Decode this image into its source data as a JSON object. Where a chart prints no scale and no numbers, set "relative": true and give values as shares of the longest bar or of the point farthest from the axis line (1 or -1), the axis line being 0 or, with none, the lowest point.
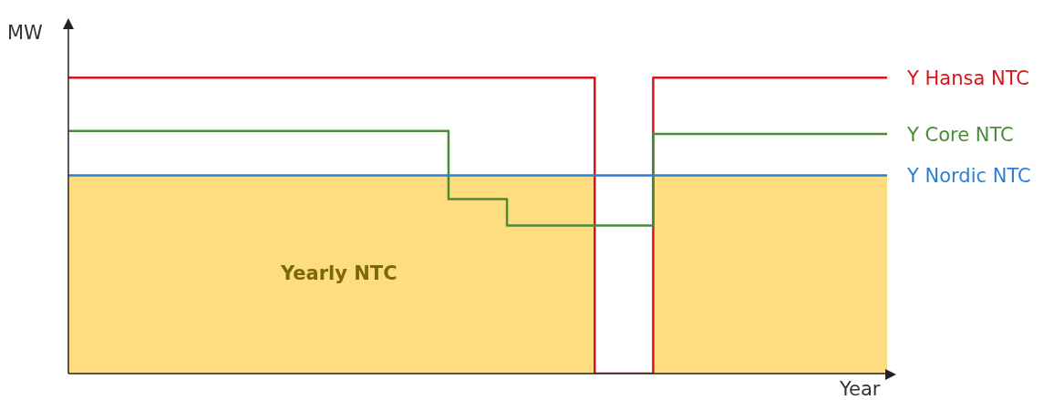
{
  "chart_data": {
    "type": "step",
    "relative": true,
    "xlabel": "Year",
    "ylabel": "MW",
    "annotations": [
      "Yearly NTC"
    ],
    "categories": [
      null,
      null,
      null,
      null,
      null,
      null,
      null,
      null,
      null,
      null,
      null,
      null,
      null,
      null,
      null,
      null,
      null,
      null,
      null,
      null,
      null,
      null,
      null,
      null,
      null,
      null,
      null,
      null,
      null
    ],
    "series": [
      {
        "type": "area",
        "color": "#fedd80",
        "values": [
          0.67,
          0.67,
          0.67,
          0.67,
          0.67,
          0.67,
          0.67,
          0.67,
          0.67,
          0.67,
          0.67,
          0.67,
          0.67,
          0.67,
          0.67,
          0.67,
          0.67,
          0.67,
          0,
          0,
          0.67,
          0.67,
          0.67,
          0.67,
          0.67,
          0.67,
          0.67,
          0.67,
          0.67
        ]
      },
      {
        "type": "step",
        "name": "Y Hansa NTC",
        "color": "#d7141c",
        "values": [
          1,
          1,
          1,
          1,
          1,
          1,
          1,
          1,
          1,
          1,
          1,
          1,
          1,
          1,
          1,
          1,
          1,
          1,
          0,
          0,
          1,
          1,
          1,
          1,
          1,
          1,
          1,
          1,
          1
        ]
      },
      {
        "type": "step",
        "name": "Y Core NTC",
        "color": "#4a8a3a",
        "values": [
          0.82,
          0.82,
          0.82,
          0.82,
          0.82,
          0.82,
          0.82,
          0.82,
          0.82,
          0.82,
          0.82,
          0.82,
          0.82,
          0.59,
          0.59,
          0.5,
          0.5,
          0.5,
          0.5,
          0.5,
          0.81,
          0.81,
          0.81,
          0.81,
          0.81,
          0.81,
          0.81,
          0.81,
          0.81
        ]
      },
      {
        "type": "step",
        "name": "Y Nordic NTC",
        "color": "#2a7fd4",
        "values": [
          0.67,
          0.67,
          0.67,
          0.67,
          0.67,
          0.67,
          0.67,
          0.67,
          0.67,
          0.67,
          0.67,
          0.67,
          0.67,
          0.67,
          0.67,
          0.67,
          0.67,
          0.67,
          0.67,
          0.67,
          0.67,
          0.67,
          0.67,
          0.67,
          0.67,
          0.67,
          0.67,
          0.67,
          0.67
        ]
      }
    ]
  }
}
